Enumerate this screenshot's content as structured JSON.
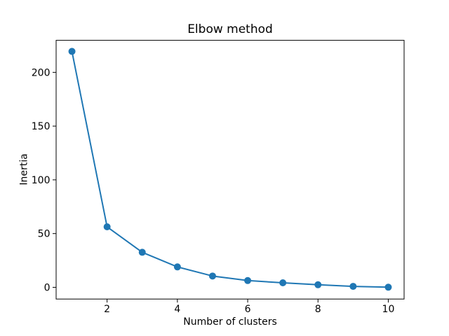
{
  "figure": {
    "background": "#ffffff"
  },
  "chart_data": {
    "type": "line",
    "title": "Elbow method",
    "xlabel": "Number of clusters",
    "ylabel": "Inertia",
    "x": [
      1,
      2,
      3,
      4,
      5,
      6,
      7,
      8,
      9,
      10
    ],
    "series": [
      {
        "name": "inertia",
        "values": [
          219.5,
          56.3,
          32.6,
          19.0,
          10.5,
          6.3,
          4.2,
          2.4,
          0.9,
          0.1
        ],
        "color": "#1f77b4",
        "marker": "circle",
        "marker_size": 5,
        "line_width": 2
      }
    ],
    "xticks": [
      2,
      4,
      6,
      8,
      10
    ],
    "yticks": [
      0,
      50,
      100,
      150,
      200
    ],
    "xlim": [
      0.55,
      10.45
    ],
    "ylim": [
      -10.9,
      229.8
    ],
    "grid": false,
    "legend": "none",
    "frame_color": "#000000",
    "text_color": "#000000"
  }
}
